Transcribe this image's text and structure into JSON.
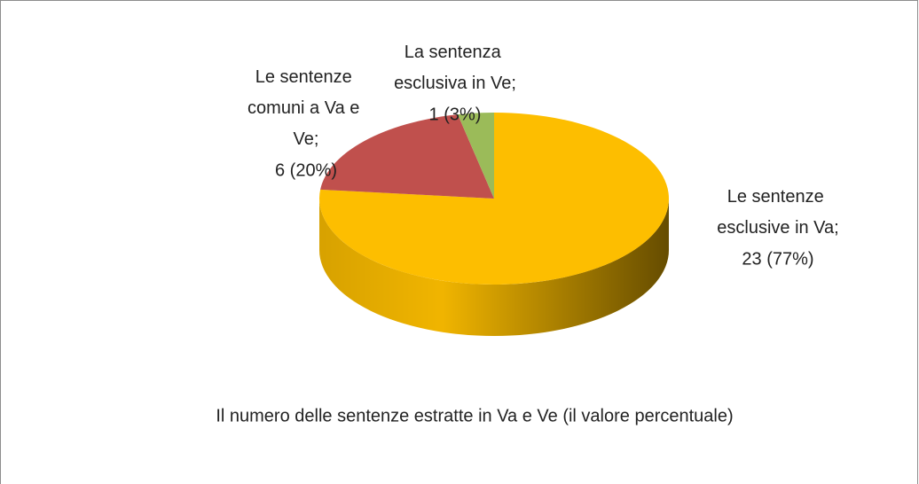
{
  "chart_data": {
    "type": "pie",
    "title": "Il numero delle sentenze estratte in Va e Ve (il valore percentuale)",
    "categories": [
      "Le sentenze esclusive in Va;",
      "Le sentenze comuni a Va e Ve;",
      "La sentenza esclusiva in Ve;"
    ],
    "values": [
      23,
      6,
      1
    ],
    "value_labels": [
      "23 (77%)",
      "6 (20%)",
      "1 (3%)"
    ],
    "colors": [
      "#FDBE00",
      "#C0504D",
      "#9BBB59"
    ]
  }
}
